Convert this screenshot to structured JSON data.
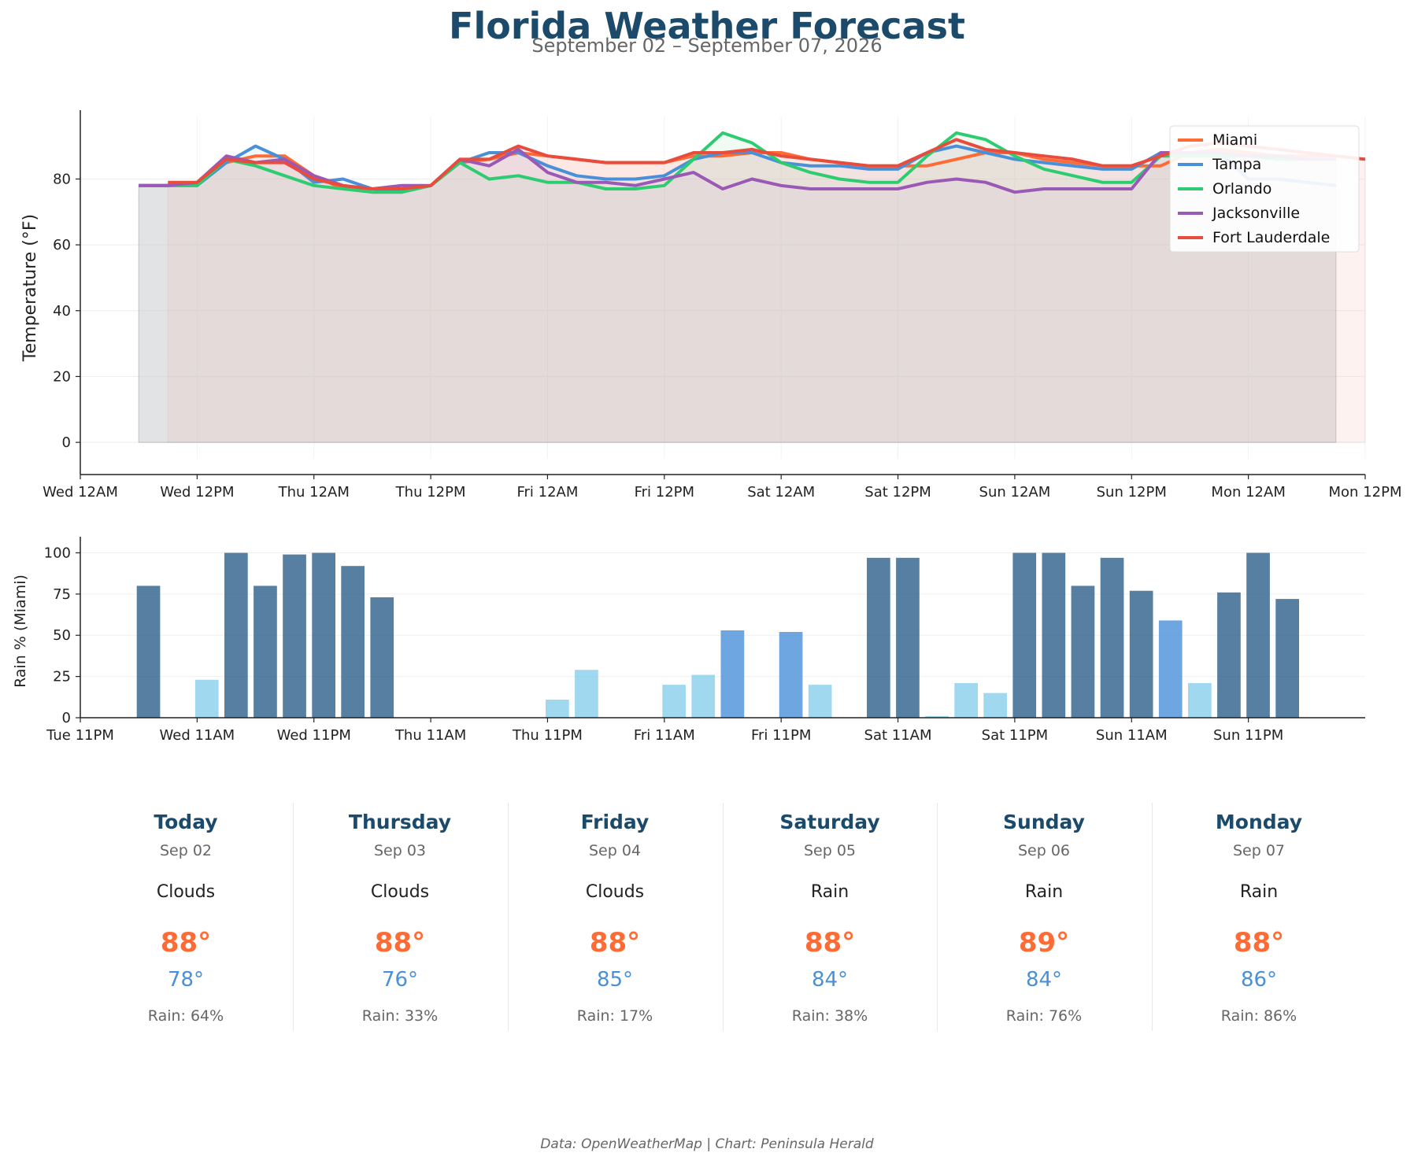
{
  "header": {
    "title": "Florida Weather Forecast",
    "subtitle": "September 02 – September 07, 2026"
  },
  "chart_data": [
    {
      "type": "line",
      "ylabel": "Temperature (°F)",
      "ylim": [
        -5,
        99
      ],
      "yticks": [
        0,
        20,
        40,
        60,
        80
      ],
      "xlim": [
        0,
        132
      ],
      "x_unit": "hours from Wed 12AM",
      "xticks": [
        {
          "x": 0,
          "label": "Wed 12AM"
        },
        {
          "x": 12,
          "label": "Wed 12PM"
        },
        {
          "x": 24,
          "label": "Thu 12AM"
        },
        {
          "x": 36,
          "label": "Thu 12PM"
        },
        {
          "x": 48,
          "label": "Fri 12AM"
        },
        {
          "x": 60,
          "label": "Fri 12PM"
        },
        {
          "x": 72,
          "label": "Sat 12AM"
        },
        {
          "x": 84,
          "label": "Sat 12PM"
        },
        {
          "x": 96,
          "label": "Sun 12AM"
        },
        {
          "x": 108,
          "label": "Sun 12PM"
        },
        {
          "x": 120,
          "label": "Mon 12AM"
        },
        {
          "x": 132,
          "label": "Mon 12PM"
        }
      ],
      "grid": true,
      "legend": "top-right",
      "series": [
        {
          "name": "Miami",
          "color": "#ff6b35",
          "fill": "#ffb89a",
          "x_start": 6,
          "values": [
            78,
            78,
            79,
            85,
            87,
            87,
            81,
            77,
            77,
            77,
            78,
            85,
            86,
            88,
            87,
            86,
            85,
            85,
            85,
            87,
            87,
            88,
            88,
            86,
            85,
            84,
            84,
            84,
            86,
            88,
            88,
            86,
            85,
            84,
            84,
            84,
            88,
            89,
            88,
            87,
            87,
            87
          ]
        },
        {
          "name": "Tampa",
          "color": "#4a90d9",
          "fill": "#a9c8ec",
          "x_start": 6,
          "values": [
            78,
            78,
            78,
            85,
            90,
            86,
            79,
            80,
            77,
            76,
            78,
            85,
            88,
            88,
            84,
            81,
            80,
            80,
            81,
            86,
            88,
            88,
            85,
            84,
            84,
            83,
            83,
            88,
            90,
            88,
            86,
            85,
            84,
            83,
            83,
            88,
            88,
            88,
            80,
            80,
            79,
            78
          ]
        },
        {
          "name": "Orlando",
          "color": "#2ecc71",
          "fill": "#9be3b5",
          "x_start": 6,
          "values": [
            78,
            78,
            78,
            86,
            84,
            81,
            78,
            77,
            76,
            76,
            78,
            85,
            80,
            81,
            79,
            79,
            77,
            77,
            78,
            86,
            94,
            91,
            85,
            82,
            80,
            79,
            79,
            87,
            94,
            92,
            87,
            83,
            81,
            79,
            79,
            87,
            87,
            87,
            87,
            86,
            86,
            86
          ]
        },
        {
          "name": "Jacksonville",
          "color": "#9b59b6",
          "fill": "#d1b3df",
          "x_start": 6,
          "values": [
            78,
            78,
            79,
            87,
            85,
            86,
            81,
            78,
            77,
            78,
            78,
            86,
            84,
            89,
            82,
            79,
            79,
            78,
            80,
            82,
            77,
            80,
            78,
            77,
            77,
            77,
            77,
            79,
            80,
            79,
            76,
            77,
            77,
            77,
            77,
            88,
            88,
            88,
            87,
            87,
            86,
            86
          ]
        },
        {
          "name": "Fort Lauderdale",
          "color": "#e74c3c",
          "fill": "#f2a59d",
          "x_start": 9,
          "values": [
            79,
            79,
            86,
            85,
            85,
            80,
            78,
            77,
            77,
            78,
            86,
            86,
            90,
            87,
            86,
            85,
            85,
            85,
            88,
            88,
            89,
            87,
            86,
            85,
            84,
            84,
            88,
            92,
            89,
            88,
            87,
            86,
            84,
            84,
            87,
            90,
            91,
            90,
            89,
            88,
            87,
            86
          ]
        }
      ]
    },
    {
      "type": "bar",
      "ylabel": "Rain % (Miami)",
      "ylim": [
        0,
        105
      ],
      "yticks": [
        0,
        25,
        50,
        75,
        100
      ],
      "xlim": [
        -1,
        131
      ],
      "x_unit": "hours from Wed 12AM",
      "xticks": [
        {
          "x": -1,
          "label": "Tue 11PM"
        },
        {
          "x": 11,
          "label": "Wed 11AM"
        },
        {
          "x": 23,
          "label": "Wed 11PM"
        },
        {
          "x": 35,
          "label": "Thu 11AM"
        },
        {
          "x": 47,
          "label": "Thu 11PM"
        },
        {
          "x": 59,
          "label": "Fri 11AM"
        },
        {
          "x": 71,
          "label": "Fri 11PM"
        },
        {
          "x": 83,
          "label": "Sat 11AM"
        },
        {
          "x": 95,
          "label": "Sat 11PM"
        },
        {
          "x": 107,
          "label": "Sun 11AM"
        },
        {
          "x": 119,
          "label": "Sun 11PM"
        }
      ],
      "x_start": 6,
      "step": 3,
      "colors": {
        "high": "#2d5f8a",
        "mid": "#4a90d9",
        "low": "#87ceeb"
      },
      "values": [
        80,
        0,
        23,
        100,
        80,
        99,
        100,
        92,
        73,
        0,
        0,
        0,
        0,
        0,
        11,
        29,
        0,
        0,
        20,
        26,
        53,
        0,
        52,
        20,
        0,
        97,
        97,
        1,
        21,
        15,
        100,
        100,
        80,
        97,
        77,
        59,
        21,
        76,
        100,
        72
      ]
    }
  ],
  "forecast": [
    {
      "day": "Today",
      "date": "Sep 02",
      "condition": "Clouds",
      "high": "88°",
      "low": "78°",
      "rain": "Rain: 64%"
    },
    {
      "day": "Thursday",
      "date": "Sep 03",
      "condition": "Clouds",
      "high": "88°",
      "low": "76°",
      "rain": "Rain: 33%"
    },
    {
      "day": "Friday",
      "date": "Sep 04",
      "condition": "Clouds",
      "high": "88°",
      "low": "85°",
      "rain": "Rain: 17%"
    },
    {
      "day": "Saturday",
      "date": "Sep 05",
      "condition": "Rain",
      "high": "88°",
      "low": "84°",
      "rain": "Rain: 38%"
    },
    {
      "day": "Sunday",
      "date": "Sep 06",
      "condition": "Rain",
      "high": "89°",
      "low": "84°",
      "rain": "Rain: 76%"
    },
    {
      "day": "Monday",
      "date": "Sep 07",
      "condition": "Rain",
      "high": "88°",
      "low": "86°",
      "rain": "Rain: 86%"
    }
  ],
  "footer": "Data: OpenWeatherMap | Chart: Peninsula Herald"
}
